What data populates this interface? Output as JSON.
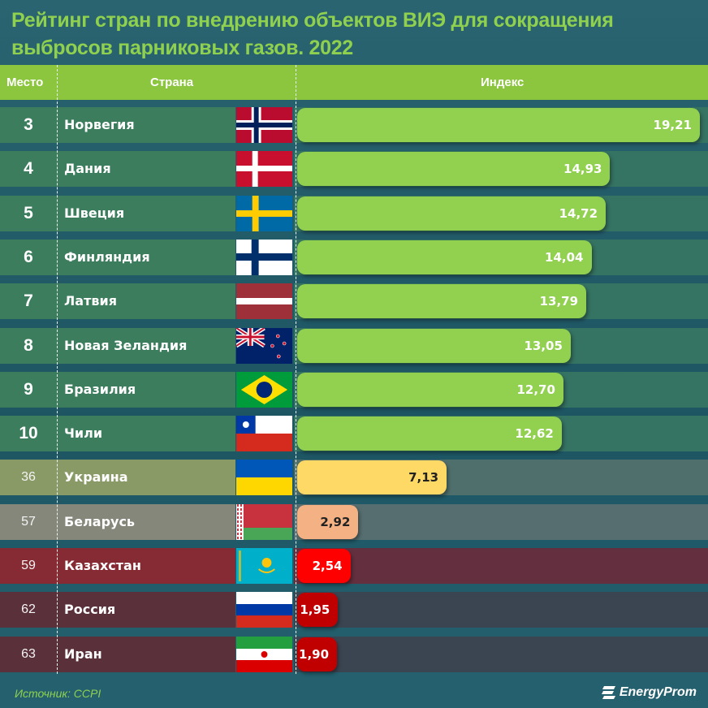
{
  "chart_data": {
    "type": "bar",
    "title": "Рейтинг стран по внедрению объектов ВИЭ для сокращения выбросов парниковых газов. 2022",
    "columns": [
      "Место",
      "Страна",
      "Индекс"
    ],
    "rows": [
      {
        "rank": "3",
        "country": "Норвегия",
        "flag": "NO",
        "value": 19.21,
        "label": "19,21",
        "group": "top"
      },
      {
        "rank": "4",
        "country": "Дания",
        "flag": "DK",
        "value": 14.93,
        "label": "14,93",
        "group": "top"
      },
      {
        "rank": "5",
        "country": "Швеция",
        "flag": "SE",
        "value": 14.72,
        "label": "14,72",
        "group": "top"
      },
      {
        "rank": "6",
        "country": "Финляндия",
        "flag": "FI",
        "value": 14.04,
        "label": "14,04",
        "group": "top"
      },
      {
        "rank": "7",
        "country": "Латвия",
        "flag": "LV",
        "value": 13.79,
        "label": "13,79",
        "group": "top"
      },
      {
        "rank": "8",
        "country": "Новая Зеландия",
        "flag": "NZ",
        "value": 13.05,
        "label": "13,05",
        "group": "top"
      },
      {
        "rank": "9",
        "country": "Бразилия",
        "flag": "BR",
        "value": 12.7,
        "label": "12,70",
        "group": "top"
      },
      {
        "rank": "10",
        "country": "Чили",
        "flag": "CL",
        "value": 12.62,
        "label": "12,62",
        "group": "top"
      },
      {
        "rank": "36",
        "country": "Украина",
        "flag": "UA",
        "value": 7.13,
        "label": "7,13",
        "group": "ua"
      },
      {
        "rank": "57",
        "country": "Беларусь",
        "flag": "BY",
        "value": 2.92,
        "label": "2,92",
        "group": "by"
      },
      {
        "rank": "59",
        "country": "Казахстан",
        "flag": "KZ",
        "value": 2.54,
        "label": "2,54",
        "group": "kz"
      },
      {
        "rank": "62",
        "country": "Россия",
        "flag": "RU",
        "value": 1.95,
        "label": "1,95",
        "group": "low"
      },
      {
        "rank": "63",
        "country": "Иран",
        "flag": "IR",
        "value": 1.9,
        "label": "1,90",
        "group": "low"
      }
    ],
    "colors": {
      "top": {
        "left": "#3b7d5c",
        "right": "#357362",
        "bar": "#92d050",
        "text": "#ffffff"
      },
      "ua": {
        "left": "#8a9a66",
        "right": "#4f6f6c",
        "bar": "#ffd966",
        "text": "#222222"
      },
      "by": {
        "left": "#84877a",
        "right": "#566e70",
        "bar": "#f4b183",
        "text": "#222222"
      },
      "kz": {
        "left": "#862a33",
        "right": "#64303f",
        "bar": "#ff0000",
        "text": "#ffffff"
      },
      "low": {
        "left": "#5a303b",
        "right": "#3b4552",
        "bar": "#c00000",
        "text": "#ffffff"
      }
    }
  },
  "source": "Источник: CCPI",
  "logo": "EnergyProm"
}
